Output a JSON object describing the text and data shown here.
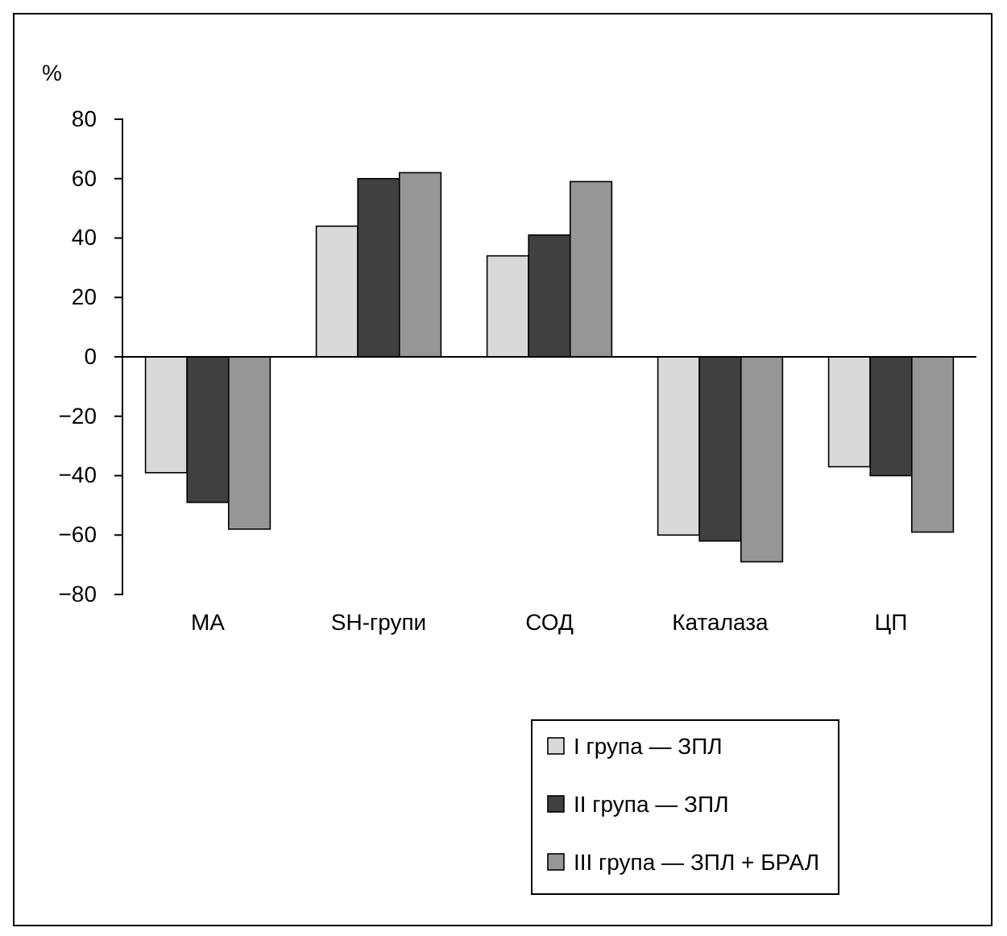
{
  "chart_data": {
    "type": "bar",
    "ylabel": "%",
    "categories": [
      "МА",
      "SH-групи",
      "СОД",
      "Каталаза",
      "ЦП"
    ],
    "series": [
      {
        "name": "I група — ЗПЛ",
        "color": "#d9d9d9",
        "values": [
          -39,
          44,
          34,
          -60,
          -37
        ]
      },
      {
        "name": "II група — ЗПЛ",
        "color": "#404040",
        "values": [
          -49,
          60,
          41,
          -62,
          -40
        ]
      },
      {
        "name": "III група — ЗПЛ + БРАЛ",
        "color": "#969696",
        "values": [
          -58,
          62,
          59,
          -69,
          -59
        ]
      }
    ],
    "ylim": [
      -80,
      80
    ],
    "yticks": [
      -80,
      -60,
      -40,
      -20,
      0,
      20,
      40,
      60,
      80
    ],
    "legend": "bottom"
  }
}
